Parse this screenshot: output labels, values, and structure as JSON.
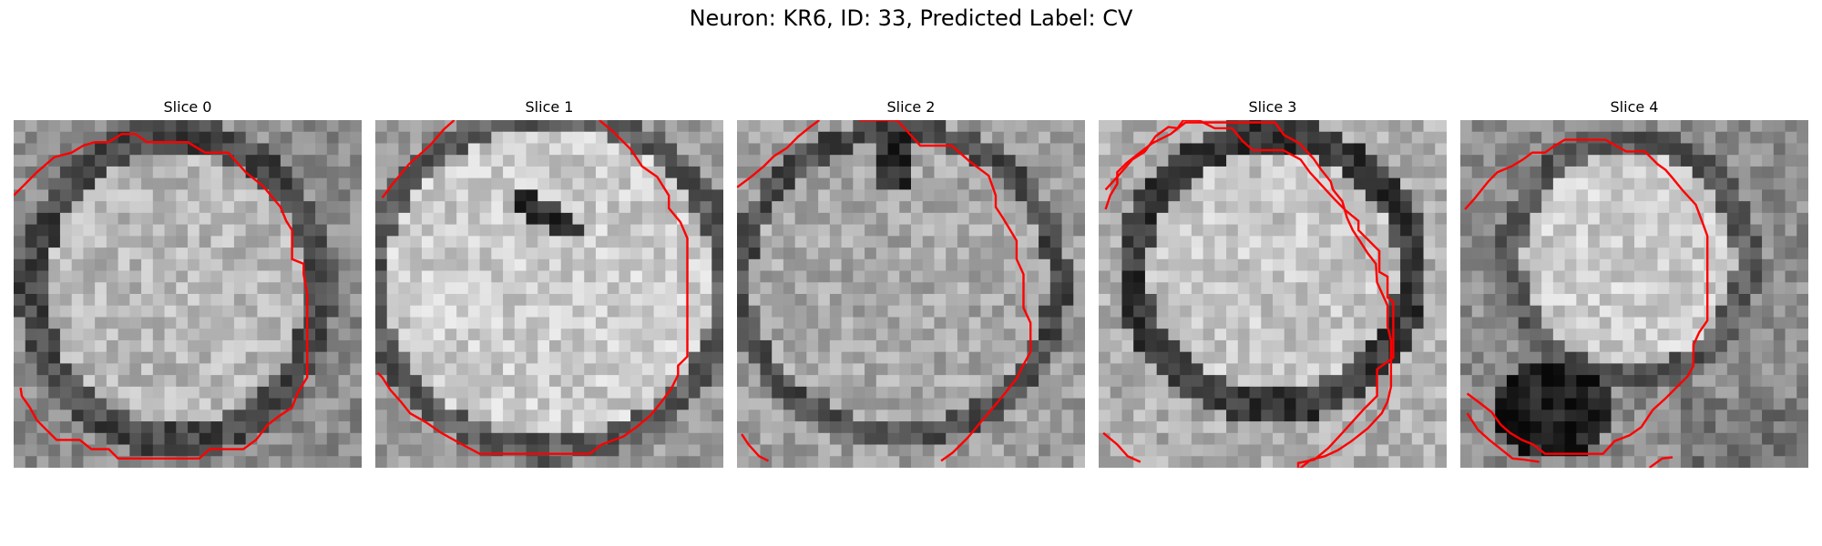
{
  "figure": {
    "title": "Neuron: KR6, ID: 33, Predicted Label: CV",
    "overlay_color": "#ff0000",
    "colormap": "grayscale"
  },
  "panels": [
    {
      "title": "Slice 0",
      "description": "grayscale microscopy patch, bright textured soma with dark membrane ring, red contour on upper-left, right and bottom"
    },
    {
      "title": "Slice 1",
      "description": "bright soma with dark elongated nucleus-like blob near top center, red contour around boundary"
    },
    {
      "title": "Slice 2",
      "description": "textured soma with dark notch at top, red contour along top and right side"
    },
    {
      "title": "Slice 3",
      "description": "bright soma surrounded by dark ring, red contour along top and right side"
    },
    {
      "title": "Slice 4",
      "description": "bright round soma at top with dark region at bottom-left, red contour loop"
    }
  ]
}
